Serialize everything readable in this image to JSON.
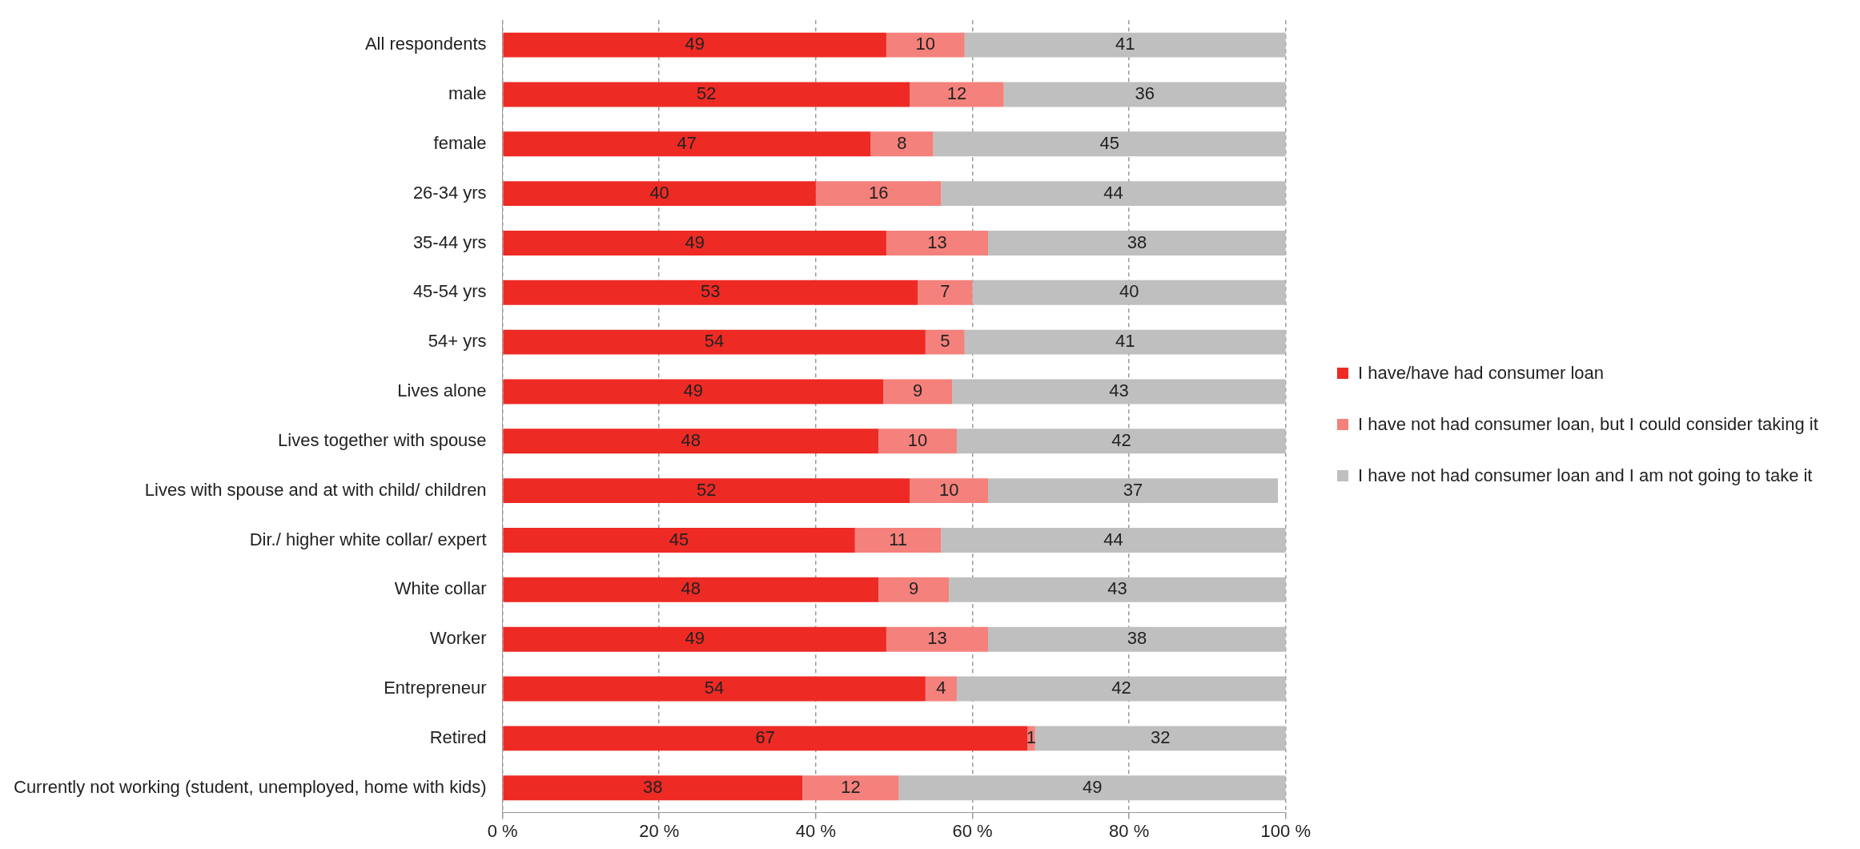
{
  "chart_data": {
    "type": "bar",
    "orientation": "horizontal",
    "stacked": true,
    "categories": [
      "All respondents",
      "male",
      "female",
      "26-34 yrs",
      "35-44 yrs",
      "45-54 yrs",
      "54+ yrs",
      "Lives alone",
      "Lives together with spouse",
      "Lives with spouse and at with child/ children",
      "Dir./ higher white collar/ expert",
      "White collar",
      "Worker",
      "Entrepreneur",
      "Retired",
      "Currently not working (student, unemployed, home with kids)"
    ],
    "series": [
      {
        "name": "I have/have had consumer loan",
        "color": "#ee2a24",
        "values": [
          49,
          52,
          47,
          40,
          49,
          53,
          54,
          48.6,
          48,
          52,
          45,
          48,
          49,
          54,
          67,
          38.3
        ],
        "value_labels": [
          "49",
          "52",
          "47",
          "40",
          "49",
          "53",
          "54",
          "49",
          "48",
          "52",
          "45",
          "48",
          "49",
          "54",
          "67",
          "38"
        ]
      },
      {
        "name": "I have not had consumer loan, but I could consider taking it",
        "color": "#f4817c",
        "values": [
          10,
          12,
          8,
          16,
          13,
          7,
          5,
          8.8,
          10,
          10,
          11,
          9,
          13,
          4,
          1,
          12.3
        ],
        "value_labels": [
          "10",
          "12",
          "8",
          "16",
          "13",
          "7",
          "5",
          "9",
          "10",
          "10",
          "11",
          "9",
          "13",
          "4",
          "1",
          "12"
        ]
      },
      {
        "name": "I have not had consumer loan and I am not going to take it",
        "color": "#bfbfbf",
        "values": [
          41,
          36,
          45,
          44,
          38,
          40,
          41,
          42.6,
          42,
          37,
          44,
          43,
          38,
          42,
          32,
          49.4
        ],
        "value_labels": [
          "41",
          "36",
          "45",
          "44",
          "38",
          "40",
          "41",
          "43",
          "42",
          "37",
          "44",
          "43",
          "38",
          "42",
          "32",
          "49"
        ]
      }
    ],
    "xlim": [
      0,
      100
    ],
    "xticks": [
      {
        "value": 0,
        "label": "0 %"
      },
      {
        "value": 20,
        "label": "20 %"
      },
      {
        "value": 40,
        "label": "40 %"
      },
      {
        "value": 60,
        "label": "60 %"
      },
      {
        "value": 80,
        "label": "80 %"
      },
      {
        "value": 100,
        "label": "100 %"
      }
    ],
    "grid": "x",
    "legend": "right"
  }
}
